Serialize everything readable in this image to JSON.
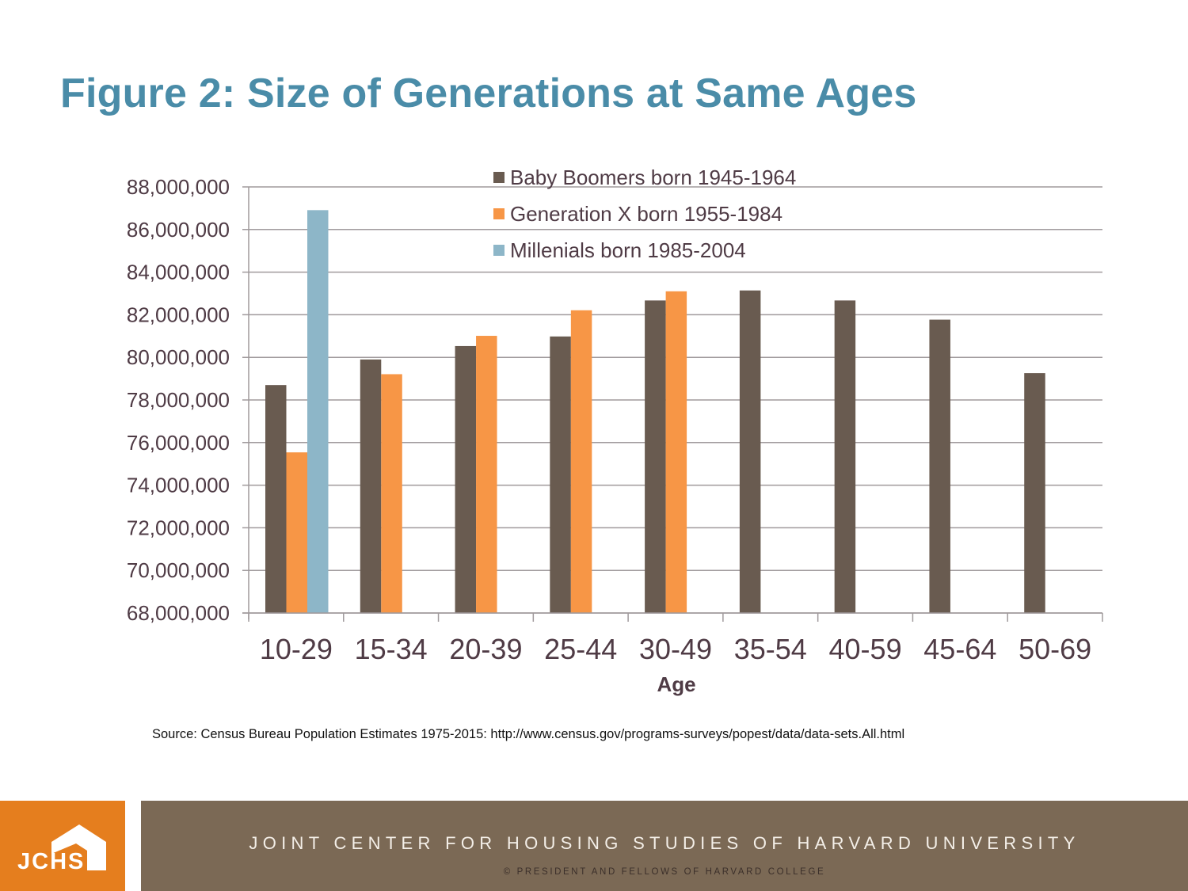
{
  "slide": {
    "title": "Figure 2: Size of Generations at Same Ages",
    "source": "Source: Census Bureau Population Estimates 1975-2015: http://www.census.gov/programs-surveys/popest/data/data-sets.All.html"
  },
  "footer": {
    "logo_text": "JCHS",
    "logo_icon": "house-icon",
    "organization": "JOINT CENTER FOR HOUSING STUDIES OF HARVARD UNIVERSITY",
    "copyright": "© PRESIDENT AND FELLOWS OF HARVARD COLLEGE",
    "colors": {
      "logo_bg": "#e57e1e",
      "band_bg": "#7b6955"
    }
  },
  "chart_data": {
    "type": "bar",
    "title": "Figure 2: Size of Generations at Same Ages",
    "xlabel": "Age",
    "ylabel": "",
    "categories": [
      "10-29",
      "15-34",
      "20-39",
      "25-44",
      "30-49",
      "35-54",
      "40-59",
      "45-64",
      "50-69"
    ],
    "series": [
      {
        "name": "Baby Boomers born 1945-1964",
        "color": "#695b50",
        "values": [
          78700000,
          79900000,
          80530000,
          80980000,
          82670000,
          83140000,
          82670000,
          81770000,
          79260000
        ]
      },
      {
        "name": "Generation X born 1955-1984",
        "color": "#f79646",
        "values": [
          75540000,
          79210000,
          81010000,
          82210000,
          83100000,
          null,
          null,
          null,
          null
        ]
      },
      {
        "name": "Millenials born 1985-2004",
        "color": "#8db6c8",
        "values": [
          86910000,
          null,
          null,
          null,
          null,
          null,
          null,
          null,
          null
        ]
      }
    ],
    "ylim": [
      68000000,
      88000000
    ],
    "yticks": [
      68000000,
      70000000,
      72000000,
      74000000,
      76000000,
      78000000,
      80000000,
      82000000,
      84000000,
      86000000,
      88000000
    ],
    "ytick_labels": [
      "68,000,000",
      "70,000,000",
      "72,000,000",
      "74,000,000",
      "76,000,000",
      "78,000,000",
      "80,000,000",
      "82,000,000",
      "84,000,000",
      "86,000,000",
      "88,000,000"
    ],
    "grid": true,
    "legend_position": "top-center",
    "text_color": "#4f3b45",
    "grid_color": "#a09a9c"
  }
}
